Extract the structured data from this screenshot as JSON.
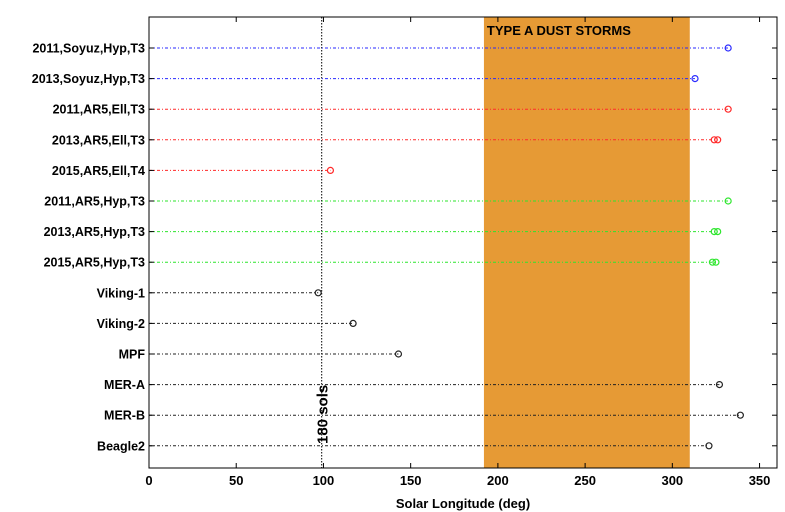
{
  "chart_data": {
    "type": "scatter",
    "title": "",
    "xlabel": "Solar Longitude (deg)",
    "ylabel": "",
    "xlim": [
      0,
      360
    ],
    "xticks": [
      0,
      50,
      100,
      150,
      200,
      250,
      300,
      350
    ],
    "grid": false,
    "band": {
      "label": "TYPE A DUST STORMS",
      "x_start": 192,
      "x_end": 310,
      "color": "#e69a35"
    },
    "vline": {
      "label": "180 sols",
      "x": 99
    },
    "categories": [
      "2011,Soyuz,Hyp,T3",
      "2013,Soyuz,Hyp,T3",
      "2011,AR5,Ell,T3",
      "2013,AR5,Ell,T3",
      "2015,AR5,Ell,T4",
      "2011,AR5,Hyp,T3",
      "2013,AR5,Hyp,T3",
      "2015,AR5,Hyp,T3",
      "Viking-1",
      "Viking-2",
      "MPF",
      "MER-A",
      "MER-B",
      "Beagle2"
    ],
    "rows": [
      {
        "category": "2011,Soyuz,Hyp,T3",
        "color": "#2a2aff",
        "values": [
          332
        ]
      },
      {
        "category": "2013,Soyuz,Hyp,T3",
        "color": "#2a2aff",
        "values": [
          313
        ]
      },
      {
        "category": "2011,AR5,Ell,T3",
        "color": "#ff2a2a",
        "values": [
          332
        ]
      },
      {
        "category": "2013,AR5,Ell,T3",
        "color": "#ff2a2a",
        "values": [
          324,
          326
        ]
      },
      {
        "category": "2015,AR5,Ell,T4",
        "color": "#ff2a2a",
        "values": [
          104
        ]
      },
      {
        "category": "2011,AR5,Hyp,T3",
        "color": "#2ee62e",
        "values": [
          332
        ]
      },
      {
        "category": "2013,AR5,Hyp,T3",
        "color": "#2ee62e",
        "values": [
          324,
          326
        ]
      },
      {
        "category": "2015,AR5,Hyp,T3",
        "color": "#2ee62e",
        "values": [
          323,
          325
        ]
      },
      {
        "category": "Viking-1",
        "color": "#222222",
        "values": [
          97
        ]
      },
      {
        "category": "Viking-2",
        "color": "#222222",
        "values": [
          117
        ]
      },
      {
        "category": "MPF",
        "color": "#222222",
        "values": [
          143
        ]
      },
      {
        "category": "MER-A",
        "color": "#222222",
        "values": [
          327
        ]
      },
      {
        "category": "MER-B",
        "color": "#222222",
        "values": [
          339
        ]
      },
      {
        "category": "Beagle2",
        "color": "#222222",
        "values": [
          321
        ]
      }
    ]
  }
}
